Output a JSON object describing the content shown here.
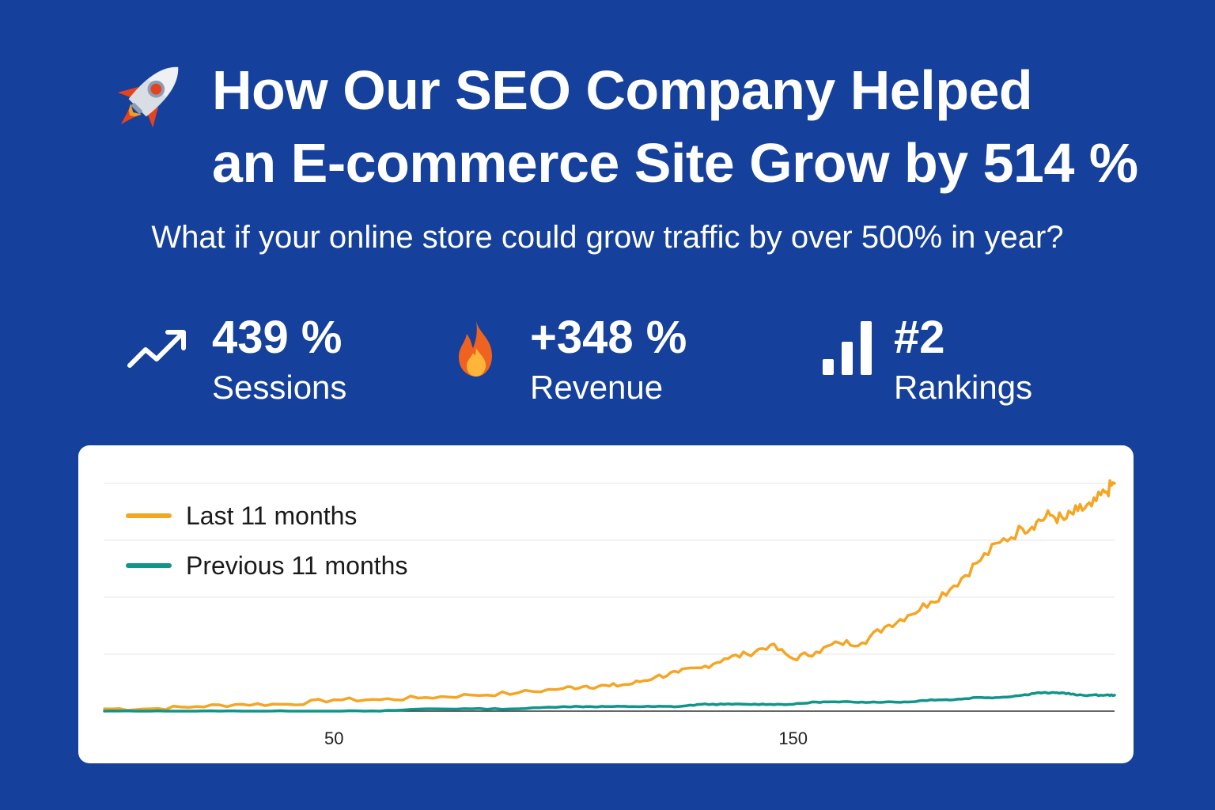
{
  "header": {
    "title_line1": "How Our SEO Company Helped",
    "title_line2": "an E-commerce Site Grow by 514 %",
    "subtitle": "What if your online store could grow traffic by over 500% in year?",
    "icon": "rocket-icon"
  },
  "stats": [
    {
      "value": "439 %",
      "label": "Sessions",
      "icon": "trend-up-icon"
    },
    {
      "value": "+348 %",
      "label": "Revenue",
      "icon": "fire-icon"
    },
    {
      "value": "#2",
      "label": "Rankings",
      "icon": "bar-chart-icon"
    }
  ],
  "colors": {
    "background": "#15409b",
    "card": "#ffffff",
    "last": "#f5a524",
    "previous": "#11958a",
    "grid": "#e6e6e6"
  },
  "chart_data": {
    "type": "line",
    "title": "",
    "xlabel": "",
    "ylabel": "",
    "xlim": [
      0,
      220
    ],
    "ylim": [
      0,
      100
    ],
    "grid": true,
    "x_ticks": [
      50,
      150
    ],
    "legend_position": "top-left",
    "x": [
      0,
      10,
      20,
      30,
      40,
      50,
      60,
      70,
      80,
      90,
      100,
      105,
      110,
      115,
      120,
      125,
      130,
      135,
      140,
      145,
      150,
      155,
      160,
      165,
      170,
      175,
      180,
      185,
      190,
      195,
      200,
      203,
      206,
      209,
      212,
      215,
      218,
      220
    ],
    "series": [
      {
        "name": "Last 11 months",
        "values": [
          1,
          1,
          2,
          3,
          3,
          5,
          5,
          6,
          7,
          8,
          10,
          11,
          11,
          12,
          15,
          17,
          19,
          23,
          25,
          29,
          23,
          26,
          30,
          30,
          37,
          42,
          48,
          55,
          65,
          74,
          80,
          83,
          86,
          84,
          88,
          90,
          96,
          100
        ],
        "color": "#f5a524"
      },
      {
        "name": "Previous 11 months",
        "values": [
          0,
          0,
          0,
          0,
          0,
          0,
          0,
          1,
          1,
          1,
          2,
          2,
          2,
          2,
          2,
          2,
          3,
          3,
          3,
          3,
          3,
          4,
          4,
          4,
          4,
          4,
          5,
          5,
          6,
          6,
          7,
          8,
          8,
          8,
          7,
          7,
          7,
          7
        ],
        "color": "#11958a"
      }
    ]
  }
}
